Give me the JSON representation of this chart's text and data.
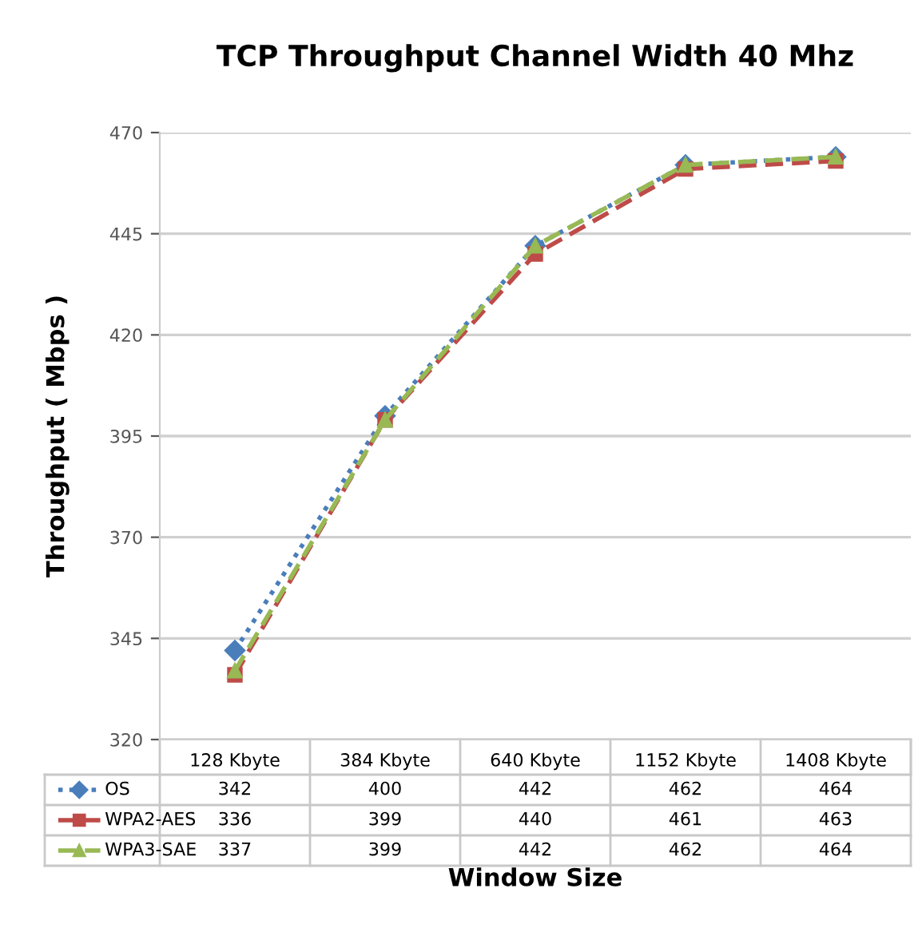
{
  "chart_data": {
    "type": "line",
    "title": "TCP Throughput Channel Width 40 Mhz",
    "xlabel": "Window Size",
    "ylabel": "Throughput ( Mbps )",
    "categories": [
      "128 Kbyte",
      "384 Kbyte",
      "640 Kbyte",
      "1152 Kbyte",
      "1408 Kbyte"
    ],
    "series": [
      {
        "name": "OS",
        "color": "#4a7ebb",
        "values": [
          342,
          400,
          442,
          462,
          464
        ],
        "marker": "diamond",
        "line_style": "dotted"
      },
      {
        "name": "WPA2-AES",
        "color": "#be4b48",
        "values": [
          336,
          399,
          440,
          461,
          463
        ],
        "marker": "square",
        "line_style": "dashed"
      },
      {
        "name": "WPA3-SAE",
        "color": "#98b954",
        "values": [
          337,
          399,
          442,
          462,
          464
        ],
        "marker": "triangle",
        "line_style": "dashed"
      }
    ],
    "ylim": [
      320,
      470
    ],
    "yticks": [
      320,
      345,
      370,
      395,
      420,
      445,
      470
    ],
    "grid": "y",
    "data_labels": true,
    "legend": "bottom"
  }
}
